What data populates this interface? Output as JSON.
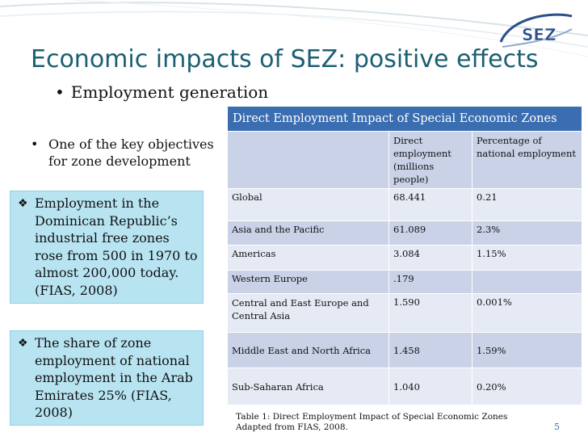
{
  "slide": {
    "title": "Economic impacts of SEZ: positive effects",
    "subtitle_bullet": "Employment generation",
    "objective_bullet": "One of the key objectives for zone development",
    "callouts": [
      "Employment in the Dominican Republic’s industrial free zones rose from 500 in 1970 to almost 200,000 today. (FIAS, 2008)",
      "The share of zone employment of national employment  in the Arab Emirates 25% (FIAS, 2008)"
    ],
    "logo_text": "SEZ",
    "page_number": "5"
  },
  "table": {
    "title": "Direct Employment Impact of Special Economic Zones",
    "columns": [
      "",
      "Direct employment (millions people)",
      "Percentage of national employment"
    ],
    "rows": [
      {
        "region": "Global",
        "employment": "68.441",
        "percent": "0.21"
      },
      {
        "region": "Asia and the Pacific",
        "employment": "61.089",
        "percent": "2.3%"
      },
      {
        "region": "Americas",
        "employment": "3.084",
        "percent": "1.15%"
      },
      {
        "region": "Western Europe",
        "employment": ".179",
        "percent": ""
      },
      {
        "region": "Central and East Europe and Central Asia",
        "employment": "1.590",
        "percent": "0.001%"
      },
      {
        "region": "Middle East and North Africa",
        "employment": "1.458",
        "percent": "1.59%"
      },
      {
        "region": "Sub-Saharan Africa",
        "employment": "1.040",
        "percent": "0.20%"
      }
    ],
    "caption_line1": "Table 1: Direct Employment Impact of Special Economic Zones",
    "caption_line2": "Adapted from FIAS, 2008."
  },
  "colors": {
    "title": "#1b5f72",
    "table_header": "#3a6eb0",
    "row_dark": "#c9d2e7",
    "row_light": "#e6eaf4",
    "callout_bg": "#b8e4f2"
  }
}
